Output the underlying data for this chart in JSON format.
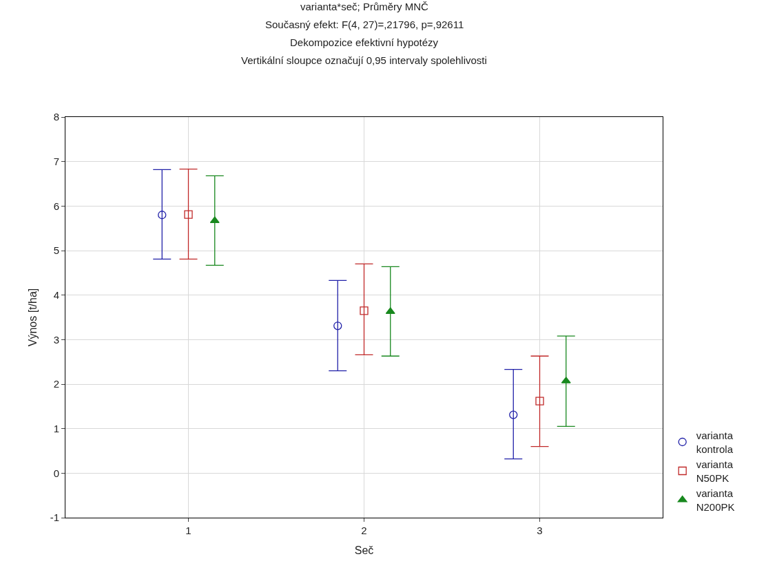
{
  "chart_data": {
    "type": "scatter",
    "title": "varianta*seč; Průměry MNČ",
    "subtitle": "Současný efekt: F(4, 27)=,21796, p=,92611",
    "annotations": [
      "Dekompozice efektivní hypotézy",
      "Vertikální sloupce označují 0,95 intervaly spolehlivosti"
    ],
    "xlabel": "Seč",
    "ylabel": "Výnos [t/ha]",
    "categories": [
      "1",
      "2",
      "3"
    ],
    "ylim": [
      -1,
      8
    ],
    "yticks": [
      -1,
      0,
      1,
      2,
      3,
      4,
      5,
      6,
      7,
      8
    ],
    "grid": true,
    "legend": "bottom right",
    "series": [
      {
        "name": "varianta kontrola",
        "color": "#2020a8",
        "marker": "circle",
        "values": [
          5.8,
          3.31,
          1.31
        ],
        "errors": [
          [
            4.81,
            6.82
          ],
          [
            2.3,
            4.33
          ],
          [
            0.32,
            2.33
          ]
        ]
      },
      {
        "name": "varianta N50PK",
        "color": "#c02828",
        "marker": "square",
        "values": [
          5.81,
          3.65,
          1.62
        ],
        "errors": [
          [
            4.81,
            6.83
          ],
          [
            2.66,
            4.7
          ],
          [
            0.6,
            2.63
          ]
        ]
      },
      {
        "name": "varianta N200PK",
        "color": "#18881e",
        "marker": "triangle",
        "values": [
          5.67,
          3.63,
          2.07
        ],
        "errors": [
          [
            4.67,
            6.68
          ],
          [
            2.63,
            4.64
          ],
          [
            1.05,
            3.08
          ]
        ]
      }
    ]
  }
}
